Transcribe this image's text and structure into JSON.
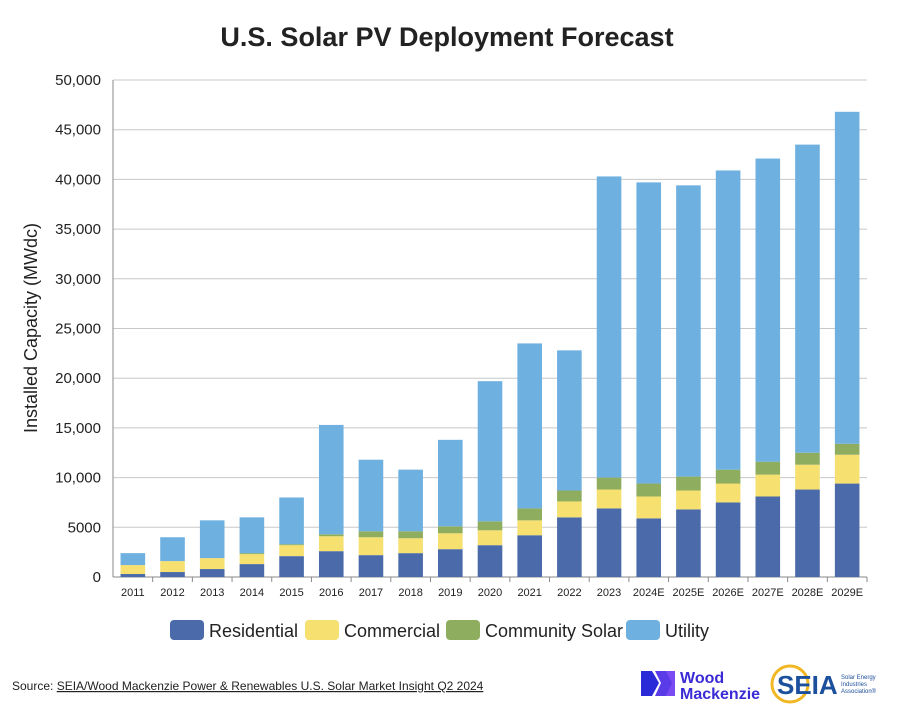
{
  "chart_data": {
    "type": "bar",
    "stacked": true,
    "title": "U.S. Solar PV Deployment Forecast",
    "xlabel": "",
    "ylabel": "Installed Capacity (MWdc)",
    "ylim": [
      0,
      50000
    ],
    "yticks": [
      "0",
      "5000",
      "10,000",
      "15,000",
      "20,000",
      "25,000",
      "30,000",
      "35,000",
      "40,000",
      "45,000",
      "50,000"
    ],
    "grid": true,
    "legend_position": "bottom",
    "categories": [
      "2011",
      "2012",
      "2013",
      "2014",
      "2015",
      "2016",
      "2017",
      "2018",
      "2019",
      "2020",
      "2021",
      "2022",
      "2023",
      "2024E",
      "2025E",
      "2026E",
      "2027E",
      "2028E",
      "2029E"
    ],
    "series": [
      {
        "name": "Residential",
        "color": "#4a6aa9",
        "values": [
          300,
          500,
          800,
          1300,
          2100,
          2600,
          2200,
          2400,
          2800,
          3200,
          4200,
          6000,
          6900,
          5900,
          6800,
          7500,
          8100,
          8800,
          9400
        ]
      },
      {
        "name": "Commercial",
        "color": "#f6e06f",
        "values": [
          900,
          1100,
          1100,
          1000,
          1100,
          1500,
          1800,
          1500,
          1600,
          1500,
          1500,
          1600,
          1900,
          2200,
          1900,
          1900,
          2200,
          2500,
          2900
        ]
      },
      {
        "name": "Community Solar",
        "color": "#8fad5f",
        "values": [
          0,
          0,
          0,
          100,
          100,
          200,
          600,
          700,
          700,
          900,
          1200,
          1100,
          1200,
          1300,
          1400,
          1400,
          1300,
          1200,
          1100
        ]
      },
      {
        "name": "Utility",
        "color": "#6eb0e0",
        "values": [
          1200,
          2400,
          3800,
          3600,
          4700,
          11000,
          7200,
          6200,
          8700,
          14100,
          16600,
          14100,
          30300,
          30300,
          29300,
          30100,
          30500,
          31000,
          33400
        ]
      }
    ]
  },
  "source": {
    "prefix": "Source: ",
    "link_text": "SEIA/Wood Mackenzie Power & Renewables U.S. Solar Market Insight Q2 2024"
  },
  "logos": {
    "wood_mackenzie": {
      "line1": "Wood",
      "line2": "Mackenzie",
      "color": "#3a2bd6"
    },
    "seia": {
      "text": "SEIA",
      "sub1": "Solar Energy",
      "sub2": "Industries",
      "sub3": "Association®",
      "color": "#1c4f9c",
      "ring_color": "#f2b824"
    }
  }
}
